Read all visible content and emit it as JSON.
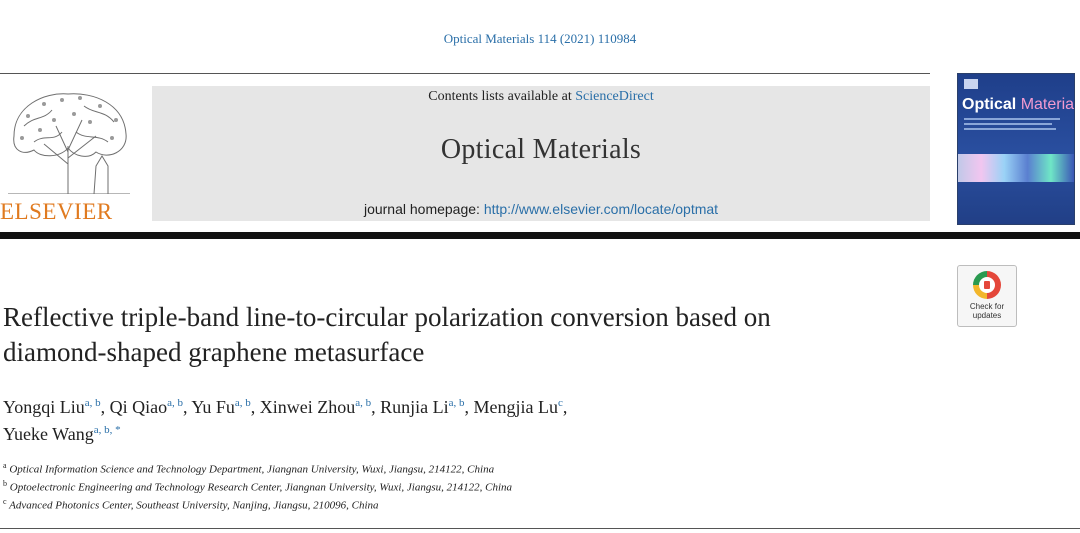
{
  "citation": "Optical Materials 114 (2021) 110984",
  "header": {
    "contents_prefix": "Contents lists available at ",
    "contents_link": "ScienceDirect",
    "journal_title": "Optical Materials",
    "homepage_prefix": "journal homepage: ",
    "homepage_url": "http://www.elsevier.com/locate/optmat"
  },
  "publisher_logo": {
    "wordmark": "ELSEVIER",
    "icon": "elsevier-tree-icon"
  },
  "cover": {
    "title_main": "Optical",
    "title_sub": "Materials"
  },
  "check_updates": {
    "line1": "Check for",
    "line2": "updates",
    "icon": "check-for-updates-icon"
  },
  "article": {
    "title_line1": "Reflective triple-band line-to-circular polarization conversion based on",
    "title_line2": "diamond-shaped graphene metasurface",
    "authors": [
      {
        "name": "Yongqi Liu",
        "aff": "a, b",
        "sep": ", "
      },
      {
        "name": "Qi Qiao",
        "aff": "a, b",
        "sep": ", "
      },
      {
        "name": "Yu Fu",
        "aff": "a, b",
        "sep": ", "
      },
      {
        "name": "Xinwei Zhou",
        "aff": "a, b",
        "sep": ", "
      },
      {
        "name": "Runjia Li",
        "aff": "a, b",
        "sep": ", "
      },
      {
        "name": "Mengjia Lu",
        "aff": "c",
        "sep": ","
      },
      {
        "name": "Yueke Wang",
        "aff": "a, b, *",
        "sep": ""
      }
    ],
    "affiliations": [
      {
        "mark": "a",
        "text": "Optical Information Science and Technology Department, Jiangnan University, Wuxi, Jiangsu, 214122, China"
      },
      {
        "mark": "b",
        "text": "Optoelectronic Engineering and Technology Research Center, Jiangnan University, Wuxi, Jiangsu, 214122, China"
      },
      {
        "mark": "c",
        "text": "Advanced Photonics Center, Southeast University, Nanjing, Jiangsu, 210096, China"
      }
    ]
  },
  "colors": {
    "link": "#2a6fa8",
    "elsevier_orange": "#e07a1f",
    "banner_gray": "#e6e6e6"
  }
}
